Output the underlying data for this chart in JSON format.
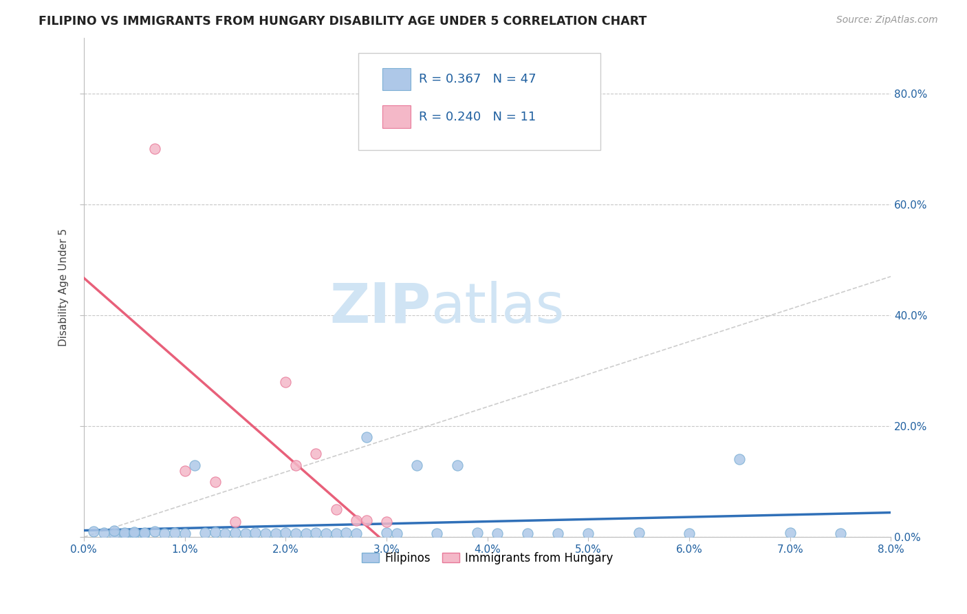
{
  "title": "FILIPINO VS IMMIGRANTS FROM HUNGARY DISABILITY AGE UNDER 5 CORRELATION CHART",
  "source_text": "Source: ZipAtlas.com",
  "ylabel": "Disability Age Under 5",
  "r_values": [
    0.367,
    0.24
  ],
  "n_values": [
    47,
    11
  ],
  "blue_scatter_color": "#aec8e8",
  "blue_edge_color": "#7bafd4",
  "pink_scatter_color": "#f4b8c8",
  "pink_edge_color": "#e87898",
  "blue_trend_color": "#3070b8",
  "pink_trend_color": "#e8607a",
  "gray_trend_color": "#c0c0c0",
  "filipinos_x": [
    0.001,
    0.002,
    0.003,
    0.003,
    0.004,
    0.004,
    0.005,
    0.005,
    0.006,
    0.006,
    0.007,
    0.008,
    0.009,
    0.01,
    0.011,
    0.012,
    0.013,
    0.014,
    0.015,
    0.016,
    0.017,
    0.018,
    0.019,
    0.02,
    0.021,
    0.022,
    0.023,
    0.024,
    0.025,
    0.026,
    0.027,
    0.028,
    0.03,
    0.031,
    0.033,
    0.035,
    0.037,
    0.039,
    0.041,
    0.044,
    0.047,
    0.05,
    0.055,
    0.06,
    0.065,
    0.07,
    0.075
  ],
  "filipinos_y": [
    0.01,
    0.008,
    0.005,
    0.012,
    0.007,
    0.008,
    0.006,
    0.009,
    0.007,
    0.008,
    0.01,
    0.007,
    0.008,
    0.006,
    0.13,
    0.008,
    0.009,
    0.007,
    0.008,
    0.007,
    0.008,
    0.006,
    0.007,
    0.008,
    0.007,
    0.006,
    0.008,
    0.007,
    0.006,
    0.008,
    0.007,
    0.18,
    0.008,
    0.007,
    0.13,
    0.007,
    0.13,
    0.008,
    0.007,
    0.007,
    0.007,
    0.006,
    0.008,
    0.007,
    0.14,
    0.008,
    0.007
  ],
  "hungary_x": [
    0.007,
    0.01,
    0.013,
    0.015,
    0.02,
    0.021,
    0.023,
    0.025,
    0.027,
    0.028,
    0.03
  ],
  "hungary_y": [
    0.7,
    0.12,
    0.1,
    0.028,
    0.28,
    0.13,
    0.15,
    0.05,
    0.03,
    0.03,
    0.028
  ],
  "xlim": [
    0.0,
    0.08
  ],
  "ylim": [
    0.0,
    0.9
  ],
  "yticks": [
    0.0,
    0.2,
    0.4,
    0.6,
    0.8
  ],
  "ytick_labels": [
    "0.0%",
    "20.0%",
    "40.0%",
    "60.0%",
    "80.0%"
  ],
  "xticks": [
    0.0,
    0.01,
    0.02,
    0.03,
    0.04,
    0.05,
    0.06,
    0.07,
    0.08
  ],
  "xtick_labels": [
    "0.0%",
    "1.0%",
    "2.0%",
    "3.0%",
    "4.0%",
    "5.0%",
    "6.0%",
    "7.0%",
    "8.0%"
  ],
  "background_color": "#ffffff",
  "grid_color": "#c8c8c8",
  "watermark_color": "#d0e4f4"
}
